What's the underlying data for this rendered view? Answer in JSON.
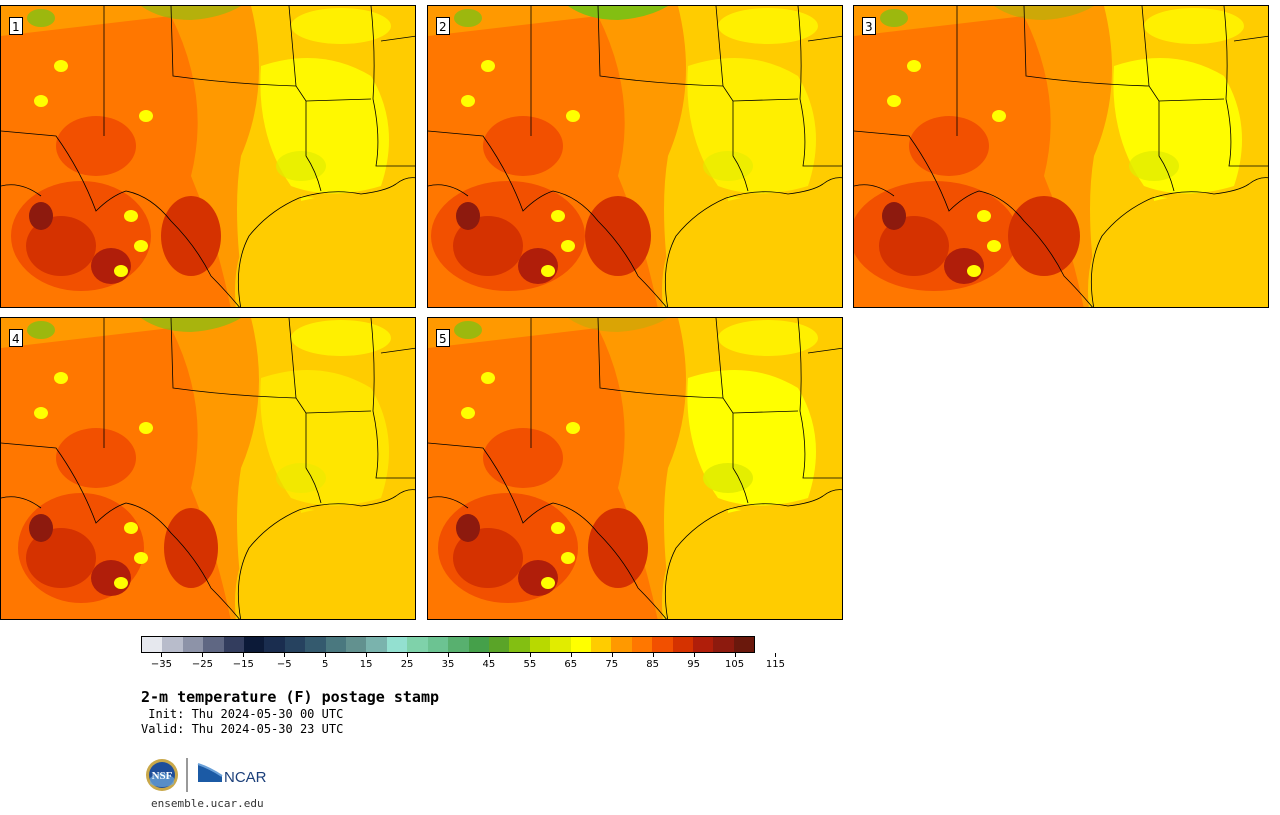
{
  "title": "2-m temperature (F) postage stamp",
  "init_line": " Init: Thu 2024-05-30 00 UTC",
  "valid_line": "Valid: Thu 2024-05-30 23 UTC",
  "site_url": "ensemble.ucar.edu",
  "logos": {
    "nsf_text": "NSF",
    "ncar_text": "NCAR"
  },
  "map": {
    "region": "Texas and southern Plains",
    "variable": "2-m temperature",
    "units": "F",
    "panels": [
      {
        "member": "1"
      },
      {
        "member": "2"
      },
      {
        "member": "3"
      },
      {
        "member": "4"
      },
      {
        "member": "5"
      }
    ]
  },
  "colorbar": {
    "tick_labels": [
      "−35",
      "−25",
      "−15",
      "−5",
      "5",
      "15",
      "25",
      "35",
      "45",
      "55",
      "65",
      "75",
      "85",
      "95",
      "105",
      "115"
    ],
    "min": -40,
    "max": 120,
    "step": 5,
    "colors": [
      "#e6e8ee",
      "#b8bccb",
      "#8d93a8",
      "#5f6783",
      "#333d5e",
      "#0c1a38",
      "#1a2d4f",
      "#26425f",
      "#345a6e",
      "#4a787f",
      "#62918f",
      "#7ab3ad",
      "#93e0d0",
      "#7fd2aa",
      "#6cc392",
      "#58b06f",
      "#45a04a",
      "#5aa428",
      "#83bf12",
      "#b8d900",
      "#e1ec00",
      "#ffff00",
      "#ffcc00",
      "#ff9900",
      "#ff7700",
      "#f25000",
      "#d53200",
      "#b01e0a",
      "#8d1a0e",
      "#6a180c"
    ]
  }
}
